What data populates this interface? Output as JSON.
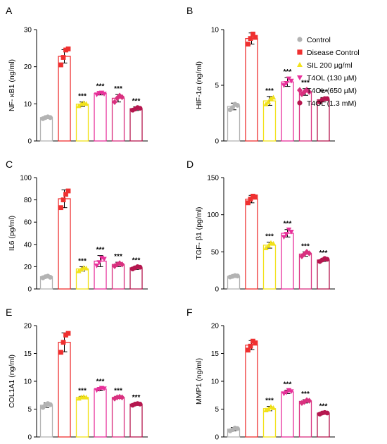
{
  "legend": [
    {
      "label": "Control",
      "color": "#b3b3b3",
      "marker": "circle"
    },
    {
      "label": "Disease Control",
      "color": "#ef3030",
      "marker": "square"
    },
    {
      "label": "SIL 200 µg/ml",
      "color": "#f2e21a",
      "marker": "triangle-up"
    },
    {
      "label": "T4OL (130 µM)",
      "color": "#e8309a",
      "marker": "triangle-down"
    },
    {
      "label": "T4OL (650 µM)",
      "color": "#d9307f",
      "marker": "diamond"
    },
    {
      "label": "T4OL (1.3 mM)",
      "color": "#b5174f",
      "marker": "circle"
    }
  ],
  "chart_data": [
    {
      "panel": "A",
      "type": "bar",
      "ylabel": "NF- κB1 (ng/ml)",
      "ylim": [
        0,
        30
      ],
      "yticks": [
        0,
        10,
        20,
        30
      ],
      "values": [
        6.3,
        22.8,
        9.9,
        12.8,
        11.5,
        8.7
      ],
      "errors": [
        0.3,
        1.8,
        0.6,
        0.4,
        1.0,
        0.5
      ],
      "points": [
        [
          6.0,
          6.3,
          6.5,
          6.3
        ],
        [
          20.5,
          22.5,
          24.5,
          24.8
        ],
        [
          9.4,
          9.9,
          10.2,
          10.0
        ],
        [
          12.5,
          12.9,
          13.0,
          12.7
        ],
        [
          10.5,
          11.5,
          12.2,
          11.8
        ],
        [
          8.3,
          8.6,
          9.0,
          8.8
        ]
      ],
      "sig": [
        "",
        "",
        "***",
        "***",
        "***",
        "***"
      ]
    },
    {
      "panel": "B",
      "type": "bar",
      "ylabel": "HIF-1α (ng/ml)",
      "ylim": [
        0,
        10
      ],
      "yticks": [
        0,
        5,
        10
      ],
      "values": [
        3.1,
        9.2,
        3.6,
        5.3,
        4.4,
        3.7
      ],
      "errors": [
        0.3,
        0.5,
        0.4,
        0.4,
        0.3,
        0.2
      ],
      "points": [
        [
          2.8,
          3.0,
          3.3,
          3.2
        ],
        [
          8.7,
          9.2,
          9.6,
          9.3
        ],
        [
          3.3,
          3.5,
          3.8,
          3.9
        ],
        [
          5.0,
          5.2,
          5.6,
          5.4
        ],
        [
          4.2,
          4.4,
          4.6,
          4.4
        ],
        [
          3.5,
          3.7,
          3.8,
          3.8
        ]
      ],
      "sig": [
        "",
        "",
        "***",
        "***",
        "***",
        "***"
      ]
    },
    {
      "panel": "C",
      "type": "bar",
      "ylabel": "IL6 (pg/ml)",
      "ylim": [
        0,
        100
      ],
      "yticks": [
        0,
        20,
        40,
        60,
        80,
        100
      ],
      "values": [
        11,
        81,
        18,
        25,
        22,
        19
      ],
      "errors": [
        1,
        8,
        2,
        5,
        2,
        1.5
      ],
      "points": [
        [
          10,
          11,
          11.5,
          10.5
        ],
        [
          73,
          80,
          85,
          88
        ],
        [
          16,
          17.5,
          19,
          18.5
        ],
        [
          21,
          24,
          28,
          27
        ],
        [
          20.5,
          22,
          23,
          22
        ],
        [
          18,
          19,
          20,
          19.5
        ]
      ],
      "sig": [
        "",
        "",
        "***",
        "***",
        "***",
        "***"
      ]
    },
    {
      "panel": "D",
      "type": "bar",
      "ylabel": "TGF- β1 (pg/ml)",
      "ylim": [
        0,
        150
      ],
      "yticks": [
        0,
        50,
        100,
        150
      ],
      "values": [
        17,
        121,
        59,
        75,
        47,
        39
      ],
      "errors": [
        1,
        5,
        4,
        5,
        3,
        2
      ],
      "points": [
        [
          16,
          17,
          18,
          17.5
        ],
        [
          116,
          121,
          125,
          124
        ],
        [
          55,
          58,
          62,
          61
        ],
        [
          70,
          74,
          80,
          77
        ],
        [
          44,
          47,
          50,
          48
        ],
        [
          37,
          39,
          41,
          40
        ]
      ],
      "sig": [
        "",
        "",
        "***",
        "***",
        "***",
        "***"
      ]
    },
    {
      "panel": "E",
      "type": "bar",
      "ylabel": "COL1A1 (ng/ml)",
      "ylim": [
        0,
        20
      ],
      "yticks": [
        0,
        5,
        10,
        15,
        20
      ],
      "values": [
        5.7,
        17.0,
        7.1,
        8.6,
        7.1,
        5.9
      ],
      "errors": [
        0.4,
        1.7,
        0.2,
        0.3,
        0.2,
        0.2
      ],
      "points": [
        [
          5.3,
          5.7,
          6.0,
          5.8
        ],
        [
          15.2,
          17.0,
          18.3,
          18.6
        ],
        [
          6.9,
          7.1,
          7.2,
          7.1
        ],
        [
          8.4,
          8.6,
          8.8,
          8.7
        ],
        [
          6.9,
          7.1,
          7.2,
          7.1
        ],
        [
          5.7,
          5.9,
          6.0,
          5.9
        ]
      ],
      "sig": [
        "",
        "",
        "***",
        "***",
        "***",
        "***"
      ]
    },
    {
      "panel": "F",
      "type": "bar",
      "ylabel": "MMP1 (ng/ml)",
      "ylim": [
        0,
        20
      ],
      "yticks": [
        0,
        5,
        10,
        15,
        20
      ],
      "values": [
        1.4,
        16.5,
        5.1,
        8.1,
        6.4,
        4.3
      ],
      "errors": [
        0.3,
        0.8,
        0.4,
        0.3,
        0.3,
        0.2
      ],
      "points": [
        [
          1.1,
          1.3,
          1.6,
          1.5
        ],
        [
          15.6,
          16.3,
          17.2,
          16.9
        ],
        [
          4.8,
          5.0,
          5.4,
          5.2
        ],
        [
          7.8,
          8.0,
          8.4,
          8.2
        ],
        [
          6.1,
          6.3,
          6.6,
          6.5
        ],
        [
          4.1,
          4.3,
          4.4,
          4.3
        ]
      ],
      "sig": [
        "",
        "",
        "***",
        "***",
        "***",
        "***"
      ]
    }
  ]
}
